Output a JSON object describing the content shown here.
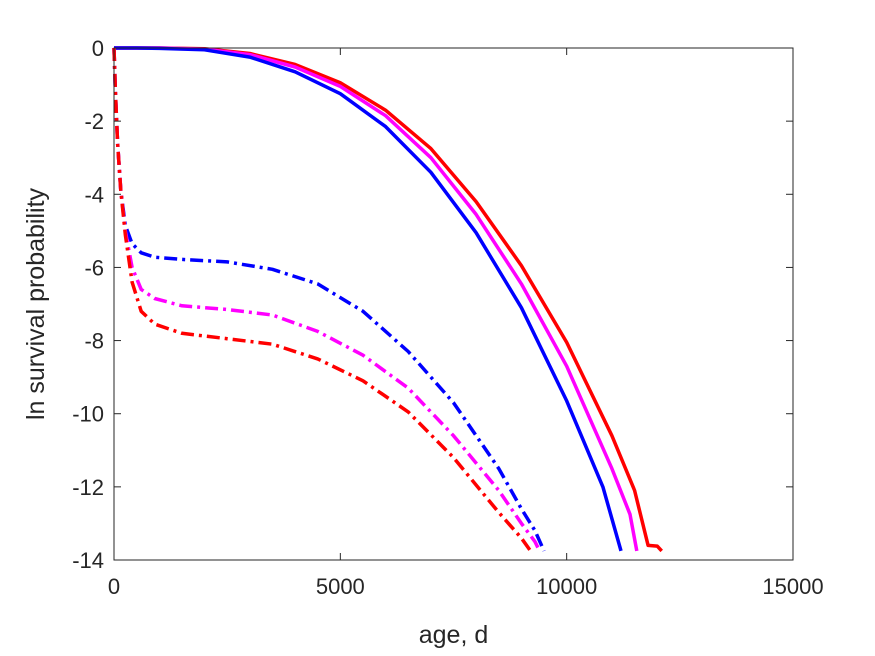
{
  "chart_data": {
    "type": "line",
    "title": "",
    "xlabel": "age, d",
    "ylabel": "ln survival probability",
    "xlim": [
      0,
      15000
    ],
    "ylim": [
      -14,
      0
    ],
    "xticks": [
      0,
      5000,
      10000,
      15000
    ],
    "yticks": [
      0,
      -2,
      -4,
      -6,
      -8,
      -10,
      -12,
      -14
    ],
    "xtick_labels": [
      "0",
      "5000",
      "10000",
      "15000"
    ],
    "ytick_labels": [
      "0",
      "-2",
      "-4",
      "-6",
      "-8",
      "-10",
      "-12",
      "-14"
    ],
    "grid": false,
    "legend": "none",
    "series": [
      {
        "color": "#ff0000",
        "style": "solid",
        "x": [
          0,
          500,
          1000,
          2000,
          3000,
          4000,
          5000,
          6000,
          7000,
          8000,
          9000,
          10000,
          11000,
          11500,
          11800,
          12000,
          12100
        ],
        "y": [
          0,
          0,
          0,
          -0.02,
          -0.15,
          -0.45,
          -0.95,
          -1.7,
          -2.75,
          -4.2,
          -5.95,
          -8.05,
          -10.6,
          -12.1,
          -13.6,
          -13.62,
          -13.75
        ]
      },
      {
        "color": "#ff00ff",
        "style": "solid",
        "x": [
          0,
          500,
          1000,
          2000,
          3000,
          4000,
          5000,
          6000,
          7000,
          8000,
          9000,
          10000,
          11000,
          11400,
          11550
        ],
        "y": [
          0,
          0,
          0,
          -0.03,
          -0.18,
          -0.52,
          -1.05,
          -1.85,
          -3.0,
          -4.55,
          -6.45,
          -8.7,
          -11.5,
          -12.75,
          -13.75
        ]
      },
      {
        "color": "#0000ff",
        "style": "solid",
        "x": [
          0,
          500,
          1000,
          2000,
          3000,
          4000,
          5000,
          6000,
          7000,
          8000,
          9000,
          10000,
          10800,
          11200
        ],
        "y": [
          0,
          0,
          -0.01,
          -0.05,
          -0.25,
          -0.65,
          -1.25,
          -2.15,
          -3.4,
          -5.05,
          -7.1,
          -9.65,
          -12.0,
          -13.75
        ]
      },
      {
        "color": "#0000ff",
        "style": "dashdot",
        "x": [
          0,
          30,
          80,
          150,
          250,
          400,
          600,
          900,
          1500,
          2500,
          3500,
          4500,
          5500,
          6500,
          7500,
          8500,
          9000,
          9300,
          9500
        ],
        "y": [
          0,
          -1.2,
          -2.6,
          -3.9,
          -4.85,
          -5.35,
          -5.6,
          -5.72,
          -5.78,
          -5.85,
          -6.05,
          -6.45,
          -7.2,
          -8.3,
          -9.7,
          -11.5,
          -12.6,
          -13.2,
          -13.75
        ]
      },
      {
        "color": "#ff00ff",
        "style": "dashdot",
        "x": [
          0,
          30,
          80,
          150,
          250,
          400,
          600,
          900,
          1500,
          2500,
          3500,
          4500,
          5500,
          6500,
          7500,
          8500,
          9000,
          9300,
          9400
        ],
        "y": [
          0,
          -1.2,
          -2.6,
          -3.9,
          -5.0,
          -6.0,
          -6.6,
          -6.85,
          -7.05,
          -7.15,
          -7.3,
          -7.75,
          -8.4,
          -9.3,
          -10.6,
          -12.1,
          -13.0,
          -13.5,
          -13.75
        ]
      },
      {
        "color": "#ff0000",
        "style": "dashdot",
        "x": [
          0,
          30,
          80,
          150,
          250,
          400,
          600,
          900,
          1500,
          2500,
          3500,
          4500,
          5500,
          6500,
          7500,
          8500,
          9000,
          9200
        ],
        "y": [
          0,
          -1.2,
          -2.6,
          -3.9,
          -5.1,
          -6.4,
          -7.2,
          -7.55,
          -7.8,
          -7.95,
          -8.1,
          -8.5,
          -9.1,
          -9.95,
          -11.2,
          -12.7,
          -13.4,
          -13.75
        ]
      }
    ]
  }
}
